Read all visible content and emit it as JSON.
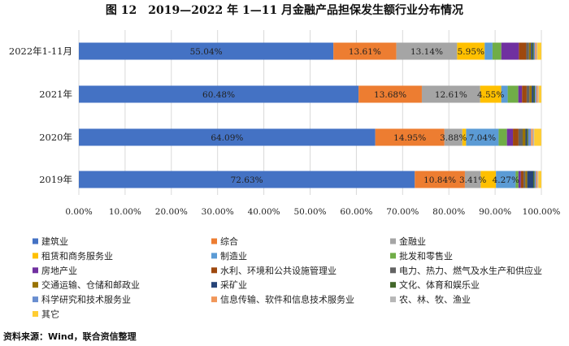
{
  "chart_data": {
    "type": "bar",
    "orientation": "horizontal",
    "stacked": true,
    "title": "图 12　2019—2022 年 1—11 月金融产品担保发生额行业分布情况",
    "source": "资料来源：Wind，联合资信整理",
    "categories": [
      "2022年1-11月",
      "2021年",
      "2020年",
      "2019年"
    ],
    "xlim": [
      0,
      100
    ],
    "xticks": [
      "0.00%",
      "10.00%",
      "20.00%",
      "30.00%",
      "40.00%",
      "50.00%",
      "60.00%",
      "70.00%",
      "80.00%",
      "90.00%",
      "100.00%"
    ],
    "grid": true,
    "legend_position": "bottom",
    "series": [
      {
        "name": "建筑业",
        "color": "#4472c4",
        "values": [
          55.04,
          60.48,
          64.09,
          72.63
        ],
        "labels": [
          "55.04%",
          "60.48%",
          "64.09%",
          "72.63%"
        ]
      },
      {
        "name": "综合",
        "color": "#ed7d31",
        "values": [
          13.61,
          13.68,
          14.95,
          10.84
        ],
        "labels": [
          "13.61%",
          "13.68%",
          "14.95%",
          "10.84%"
        ]
      },
      {
        "name": "金融业",
        "color": "#a5a5a5",
        "values": [
          13.14,
          12.61,
          3.88,
          3.41
        ],
        "labels": [
          "13.14%",
          "12.61%",
          "3.88%",
          "3.41%"
        ]
      },
      {
        "name": "租赁和商务服务业",
        "color": "#ffc000",
        "values": [
          5.95,
          4.55,
          0.8,
          3.3
        ],
        "labels": [
          "5.95%",
          "4.55%",
          "",
          ""
        ]
      },
      {
        "name": "制造业",
        "color": "#5b9bd5",
        "values": [
          1.7,
          1.4,
          7.04,
          4.27
        ],
        "labels": [
          "",
          "",
          "7.04%",
          "4.27%"
        ]
      },
      {
        "name": "批发和零售业",
        "color": "#70ad47",
        "values": [
          1.9,
          2.3,
          1.8,
          0.6
        ],
        "labels": [
          "",
          "",
          "",
          ""
        ]
      },
      {
        "name": "房地产业",
        "color": "#7030a0",
        "values": [
          3.8,
          0.8,
          1.3,
          0.5
        ],
        "labels": [
          "",
          "",
          "",
          ""
        ]
      },
      {
        "name": "水利、环境和公共设施管理业",
        "color": "#9e480e",
        "values": [
          1.6,
          1.0,
          1.2,
          0.6
        ],
        "labels": [
          "",
          "",
          "",
          ""
        ]
      },
      {
        "name": "电力、热力、燃气及水生产和供应业",
        "color": "#636363",
        "values": [
          0.6,
          0.6,
          0.9,
          0.4
        ],
        "labels": [
          "",
          "",
          "",
          ""
        ]
      },
      {
        "name": "交通运输、仓储和邮政业",
        "color": "#997300",
        "values": [
          0.4,
          0.5,
          0.6,
          0.4
        ],
        "labels": [
          "",
          "",
          "",
          ""
        ]
      },
      {
        "name": "采矿业",
        "color": "#264478",
        "values": [
          0.3,
          0.4,
          0.3,
          1.3
        ],
        "labels": [
          "",
          "",
          "",
          ""
        ]
      },
      {
        "name": "文化、体育和娱乐业",
        "color": "#43682b",
        "values": [
          0.3,
          0.3,
          0.3,
          0.3
        ],
        "labels": [
          "",
          "",
          "",
          ""
        ]
      },
      {
        "name": "科学研究和技术服务业",
        "color": "#698ed0",
        "values": [
          0.3,
          0.3,
          0.6,
          0.3
        ],
        "labels": [
          "",
          "",
          "",
          ""
        ]
      },
      {
        "name": "信息传输、软件和信息技术服务业",
        "color": "#f1975a",
        "values": [
          0.3,
          0.3,
          0.4,
          0.3
        ],
        "labels": [
          "",
          "",
          "",
          ""
        ]
      },
      {
        "name": "农、林、牧、渔业",
        "color": "#b7b7b7",
        "values": [
          0.2,
          0.2,
          0.3,
          0.2
        ],
        "labels": [
          "",
          "",
          "",
          ""
        ]
      },
      {
        "name": "其它",
        "color": "#ffcd33",
        "values": [
          0.86,
          0.58,
          1.53,
          0.65
        ],
        "labels": [
          "",
          "",
          "",
          ""
        ]
      }
    ]
  }
}
